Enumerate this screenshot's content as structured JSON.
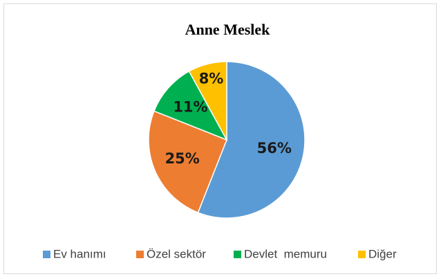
{
  "chart_data": {
    "type": "pie",
    "title": "Anne Meslek",
    "categories": [
      "Ev hanımı",
      "Özel sektör",
      "Devlet  memuru",
      "Diğer"
    ],
    "values": [
      56,
      25,
      11,
      8
    ],
    "value_labels": [
      "56%",
      "25%",
      "11%",
      "8%"
    ],
    "colors": [
      "#5b9bd5",
      "#ed7d31",
      "#00b050",
      "#ffc000"
    ],
    "legend": "bottom"
  }
}
